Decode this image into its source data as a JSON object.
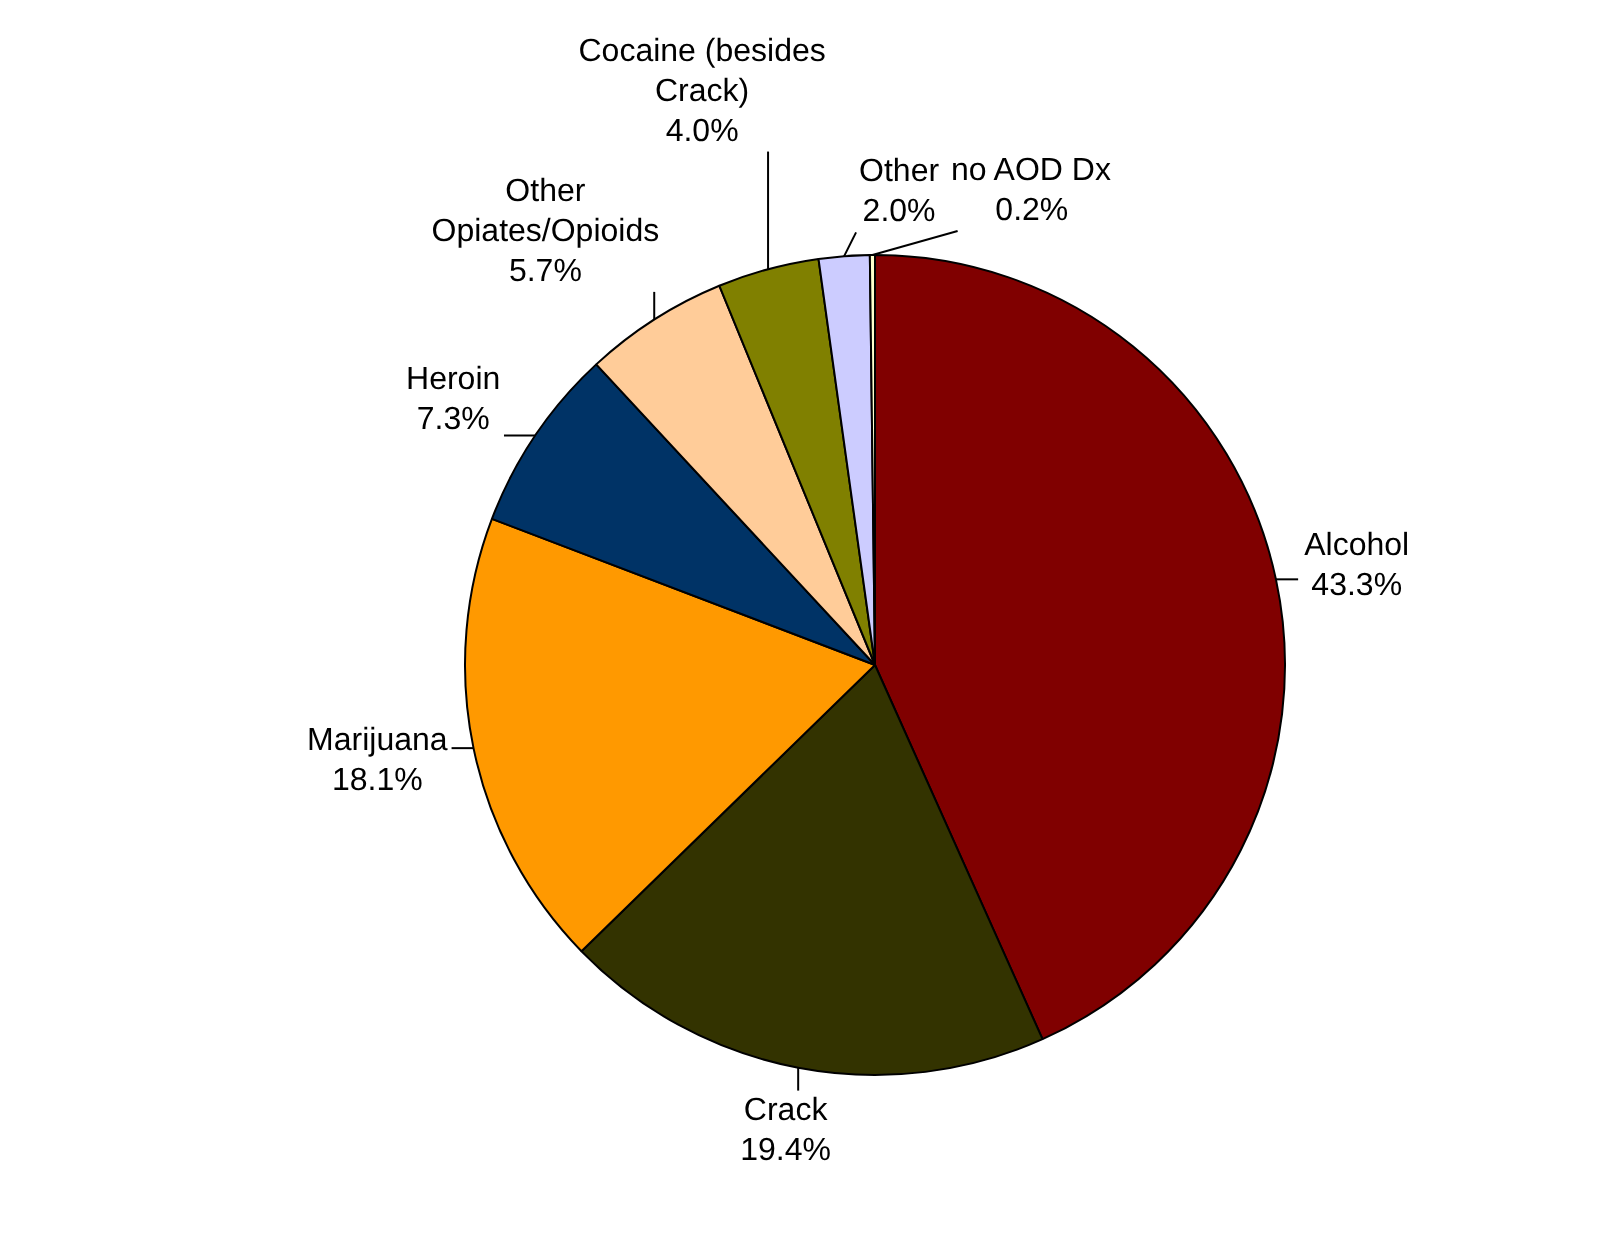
{
  "chart_data": {
    "type": "pie",
    "categories": [
      "Alcohol",
      "Crack",
      "Marijuana",
      "Heroin",
      "Other Opiates/Opioids",
      "Cocaine (besides Crack)",
      "Other",
      "no AOD Dx"
    ],
    "values": [
      43.3,
      19.4,
      18.1,
      7.3,
      5.7,
      4.0,
      2.0,
      0.2
    ],
    "colors": [
      "#800000",
      "#333300",
      "#ff9900",
      "#003366",
      "#ffcc99",
      "#808000",
      "#ccccff",
      "#ffffcc"
    ],
    "value_labels": [
      "43.3%",
      "19.4%",
      "18.1%",
      "7.3%",
      "5.7%",
      "4.0%",
      "2.0%",
      "0.2%"
    ]
  }
}
